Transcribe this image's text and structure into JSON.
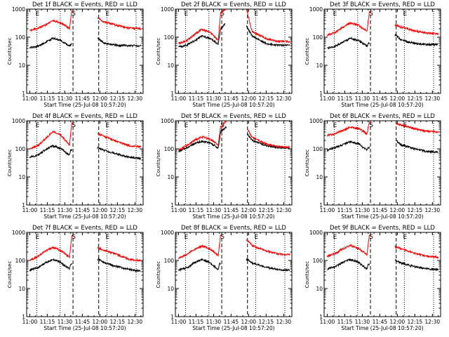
{
  "figure": {
    "ylabel": "Counts/sec",
    "xlabel": "Start Time (25-Jul-08 10:57:20)",
    "ytick_labels": [
      "1000",
      "100",
      "10",
      "1"
    ],
    "xtick_labels": [
      "11:00",
      "11:15",
      "11:30",
      "11:45",
      "12:00",
      "12:15",
      "12:30"
    ],
    "marker_labels": [
      "E",
      "S",
      "E"
    ],
    "colors": {
      "events": "#000000",
      "lld": "#ff0000"
    }
  },
  "chart_data": [
    {
      "type": "line",
      "title": "Det 1f BLACK = Events, RED = LLD",
      "x_range": [
        "10:57:20",
        "12:37:00"
      ],
      "ylim": [
        1,
        1000
      ],
      "yscale": "log",
      "markers": {
        "dotted": [
          "11:06",
          "11:26",
          "12:06",
          "12:31"
        ],
        "dashed": [
          "11:37",
          "11:59"
        ]
      },
      "gap": [
        "11:36",
        "11:58"
      ],
      "series": [
        {
          "name": "Events",
          "color": "#000000",
          "x": [
            "11:00",
            "11:07",
            "11:13",
            "11:20",
            "11:27",
            "11:31",
            "11:34",
            "11:35",
            "11:59",
            "12:03",
            "12:15",
            "12:25",
            "12:35"
          ],
          "y": [
            42,
            48,
            65,
            92,
            75,
            58,
            48,
            55,
            90,
            62,
            52,
            50,
            50
          ]
        },
        {
          "name": "LLD",
          "color": "#ff0000",
          "x": [
            "11:00",
            "11:07",
            "11:13",
            "11:20",
            "11:27",
            "11:31",
            "11:34",
            "11:36",
            "11:37",
            "11:59",
            "12:03",
            "12:15",
            "12:25",
            "12:35"
          ],
          "y": [
            180,
            210,
            270,
            390,
            310,
            250,
            200,
            900,
            1000,
            480,
            360,
            260,
            210,
            200
          ]
        }
      ]
    },
    {
      "type": "line",
      "title": "Det 2f BLACK = Events, RED = LLD",
      "x_range": [
        "10:57:20",
        "12:37:00"
      ],
      "ylim": [
        1,
        1000
      ],
      "yscale": "log",
      "markers": {
        "dotted": [
          "11:06",
          "11:26",
          "12:06",
          "12:31"
        ],
        "dashed": [
          "11:37",
          "11:59"
        ]
      },
      "gap": [
        "11:40",
        "11:58"
      ],
      "series": [
        {
          "name": "Events",
          "color": "#000000",
          "x": [
            "11:00",
            "11:07",
            "11:13",
            "11:20",
            "11:27",
            "11:31",
            "11:34",
            "11:36",
            "11:40",
            "11:58",
            "12:03",
            "12:15",
            "12:25",
            "12:35"
          ],
          "y": [
            45,
            52,
            72,
            110,
            90,
            70,
            58,
            200,
            300,
            260,
            110,
            60,
            52,
            52
          ]
        },
        {
          "name": "LLD",
          "color": "#ff0000",
          "x": [
            "11:00",
            "11:07",
            "11:13",
            "11:20",
            "11:27",
            "11:31",
            "11:34",
            "11:36",
            "11:40",
            "11:58",
            "12:03",
            "12:15",
            "12:25",
            "12:35"
          ],
          "y": [
            60,
            75,
            120,
            190,
            150,
            100,
            80,
            700,
            1000,
            1000,
            160,
            90,
            70,
            70
          ]
        }
      ]
    },
    {
      "type": "line",
      "title": "Det 3f BLACK = Events, RED = LLD",
      "x_range": [
        "10:57:20",
        "12:37:00"
      ],
      "ylim": [
        1,
        1000
      ],
      "yscale": "log",
      "markers": {
        "dotted": [
          "11:06",
          "11:26",
          "12:06",
          "12:31"
        ],
        "dashed": [
          "11:37",
          "11:59"
        ]
      },
      "gap": [
        "11:36",
        "11:58"
      ],
      "series": [
        {
          "name": "Events",
          "color": "#000000",
          "x": [
            "11:00",
            "11:07",
            "11:13",
            "11:20",
            "11:27",
            "11:31",
            "11:34",
            "11:35",
            "11:59",
            "12:03",
            "12:15",
            "12:25",
            "12:35"
          ],
          "y": [
            40,
            48,
            65,
            92,
            75,
            58,
            48,
            60,
            120,
            80,
            60,
            55,
            55
          ]
        },
        {
          "name": "LLD",
          "color": "#ff0000",
          "x": [
            "11:00",
            "11:07",
            "11:13",
            "11:20",
            "11:27",
            "11:31",
            "11:34",
            "11:36",
            "11:37",
            "11:59",
            "12:03",
            "12:15",
            "12:25",
            "12:35"
          ],
          "y": [
            120,
            150,
            220,
            330,
            260,
            200,
            160,
            800,
            1000,
            260,
            230,
            170,
            140,
            130
          ]
        }
      ]
    },
    {
      "type": "line",
      "title": "Det 4f BLACK = Events, RED = LLD",
      "x_range": [
        "10:57:20",
        "12:37:00"
      ],
      "ylim": [
        1,
        1000
      ],
      "yscale": "log",
      "markers": {
        "dotted": [
          "11:06",
          "11:26",
          "12:06",
          "12:31"
        ],
        "dashed": [
          "11:37",
          "11:59"
        ]
      },
      "gap": [
        "11:36",
        "11:58"
      ],
      "series": [
        {
          "name": "Events",
          "color": "#000000",
          "x": [
            "11:00",
            "11:07",
            "11:13",
            "11:20",
            "11:27",
            "11:31",
            "11:34",
            "11:35",
            "11:59",
            "12:03",
            "12:15",
            "12:25",
            "12:35"
          ],
          "y": [
            50,
            60,
            90,
            130,
            100,
            72,
            60,
            90,
            110,
            90,
            65,
            50,
            45
          ]
        },
        {
          "name": "LLD",
          "color": "#ff0000",
          "x": [
            "11:00",
            "11:07",
            "11:13",
            "11:20",
            "11:27",
            "11:31",
            "11:34",
            "11:36",
            "11:37",
            "11:59",
            "12:03",
            "12:15",
            "12:25",
            "12:35"
          ],
          "y": [
            100,
            130,
            220,
            420,
            300,
            190,
            140,
            900,
            1000,
            340,
            280,
            180,
            130,
            120
          ]
        }
      ]
    },
    {
      "type": "line",
      "title": "Det 5f BLACK = Events, RED = LLD",
      "x_range": [
        "10:57:20",
        "12:37:00"
      ],
      "ylim": [
        1,
        1000
      ],
      "yscale": "log",
      "markers": {
        "dotted": [
          "11:06",
          "11:26",
          "12:06",
          "12:31"
        ],
        "dashed": [
          "11:37",
          "11:59"
        ]
      },
      "gap": [
        "11:41",
        "11:59"
      ],
      "series": [
        {
          "name": "Events",
          "color": "#000000",
          "x": [
            "11:00",
            "11:07",
            "11:13",
            "11:20",
            "11:27",
            "11:31",
            "11:34",
            "11:36",
            "11:41",
            "11:59",
            "12:03",
            "12:15",
            "12:25",
            "12:35"
          ],
          "y": [
            80,
            110,
            150,
            190,
            160,
            130,
            110,
            400,
            600,
            330,
            200,
            130,
            110,
            105
          ]
        },
        {
          "name": "LLD",
          "color": "#ff0000",
          "x": [
            "11:00",
            "11:07",
            "11:13",
            "11:20",
            "11:27",
            "11:31",
            "11:34",
            "11:36",
            "11:41",
            "11:59",
            "12:03",
            "12:15",
            "12:25",
            "12:35"
          ],
          "y": [
            90,
            130,
            190,
            270,
            220,
            170,
            130,
            600,
            1000,
            500,
            250,
            150,
            120,
            115
          ]
        }
      ]
    },
    {
      "type": "line",
      "title": "Det 6f BLACK = Events, RED = LLD",
      "x_range": [
        "10:57:20",
        "12:37:00"
      ],
      "ylim": [
        1,
        1000
      ],
      "yscale": "log",
      "markers": {
        "dotted": [
          "11:06",
          "11:26",
          "12:06",
          "12:31"
        ],
        "dashed": [
          "11:37",
          "11:59"
        ]
      },
      "gap": [
        "11:36",
        "11:59"
      ],
      "series": [
        {
          "name": "Events",
          "color": "#000000",
          "x": [
            "11:00",
            "11:07",
            "11:13",
            "11:20",
            "11:27",
            "11:31",
            "11:34",
            "11:35",
            "11:59",
            "12:03",
            "12:15",
            "12:25",
            "12:35"
          ],
          "y": [
            90,
            110,
            140,
            180,
            150,
            110,
            90,
            110,
            200,
            140,
            100,
            80,
            75
          ]
        },
        {
          "name": "LLD",
          "color": "#ff0000",
          "x": [
            "11:00",
            "11:07",
            "11:13",
            "11:20",
            "11:27",
            "11:31",
            "11:34",
            "11:36",
            "11:37",
            "11:59",
            "12:03",
            "12:15",
            "12:25",
            "12:35"
          ],
          "y": [
            300,
            350,
            450,
            600,
            520,
            420,
            350,
            900,
            1000,
            800,
            700,
            520,
            420,
            400
          ]
        }
      ]
    },
    {
      "type": "line",
      "title": "Det 7f BLACK = Events, RED = LLD",
      "x_range": [
        "10:57:20",
        "12:37:00"
      ],
      "ylim": [
        1,
        1000
      ],
      "yscale": "log",
      "markers": {
        "dotted": [
          "11:06",
          "11:26",
          "12:06",
          "12:31"
        ],
        "dashed": [
          "11:37",
          "11:59"
        ]
      },
      "gap": [
        "11:36",
        "11:58"
      ],
      "series": [
        {
          "name": "Events",
          "color": "#000000",
          "x": [
            "11:00",
            "11:07",
            "11:13",
            "11:20",
            "11:27",
            "11:31",
            "11:34",
            "11:35",
            "11:59",
            "12:03",
            "12:15",
            "12:25",
            "12:35"
          ],
          "y": [
            45,
            55,
            80,
            110,
            85,
            60,
            50,
            75,
            110,
            85,
            60,
            48,
            42
          ]
        },
        {
          "name": "LLD",
          "color": "#ff0000",
          "x": [
            "11:00",
            "11:07",
            "11:13",
            "11:20",
            "11:27",
            "11:31",
            "11:34",
            "11:36",
            "11:37",
            "11:59",
            "12:03",
            "12:15",
            "12:25",
            "12:35"
          ],
          "y": [
            100,
            140,
            220,
            290,
            220,
            160,
            130,
            800,
            1000,
            270,
            240,
            160,
            110,
            100
          ]
        }
      ]
    },
    {
      "type": "line",
      "title": "Det 8f BLACK = Events, RED = LLD",
      "x_range": [
        "10:57:20",
        "12:37:00"
      ],
      "ylim": [
        1,
        1000
      ],
      "yscale": "log",
      "markers": {
        "dotted": [
          "11:06",
          "11:26",
          "12:06",
          "12:31"
        ],
        "dashed": [
          "11:37",
          "11:59"
        ]
      },
      "gap": [
        "11:36",
        "11:58"
      ],
      "series": [
        {
          "name": "Events",
          "color": "#000000",
          "x": [
            "11:00",
            "11:07",
            "11:13",
            "11:20",
            "11:27",
            "11:31",
            "11:34",
            "11:35",
            "11:59",
            "12:03",
            "12:15",
            "12:25",
            "12:35"
          ],
          "y": [
            45,
            55,
            80,
            110,
            85,
            60,
            48,
            75,
            110,
            80,
            58,
            48,
            45
          ]
        },
        {
          "name": "LLD",
          "color": "#ff0000",
          "x": [
            "11:00",
            "11:07",
            "11:13",
            "11:20",
            "11:27",
            "11:31",
            "11:34",
            "11:36",
            "11:37",
            "11:59",
            "12:03",
            "12:15",
            "12:25",
            "12:35"
          ],
          "y": [
            120,
            160,
            240,
            330,
            260,
            190,
            150,
            800,
            1000,
            520,
            340,
            220,
            170,
            160
          ]
        }
      ]
    },
    {
      "type": "line",
      "title": "Det 9f BLACK = Events, RED = LLD",
      "x_range": [
        "10:57:20",
        "12:37:00"
      ],
      "ylim": [
        1,
        1000
      ],
      "yscale": "log",
      "markers": {
        "dotted": [
          "11:06",
          "11:26",
          "12:06",
          "12:31"
        ],
        "dashed": [
          "11:37",
          "11:59"
        ]
      },
      "gap": [
        "11:36",
        "11:58"
      ],
      "series": [
        {
          "name": "Events",
          "color": "#000000",
          "x": [
            "11:00",
            "11:07",
            "11:13",
            "11:20",
            "11:27",
            "11:31",
            "11:34",
            "11:35",
            "11:59",
            "12:03",
            "12:15",
            "12:25",
            "12:35"
          ],
          "y": [
            50,
            60,
            85,
            110,
            85,
            62,
            50,
            70,
            100,
            80,
            60,
            50,
            48
          ]
        },
        {
          "name": "LLD",
          "color": "#ff0000",
          "x": [
            "11:00",
            "11:07",
            "11:13",
            "11:20",
            "11:27",
            "11:31",
            "11:34",
            "11:36",
            "11:37",
            "11:59",
            "12:03",
            "12:15",
            "12:25",
            "12:35"
          ],
          "y": [
            140,
            180,
            260,
            340,
            270,
            200,
            160,
            800,
            1000,
            300,
            260,
            180,
            140,
            130
          ]
        }
      ]
    }
  ]
}
